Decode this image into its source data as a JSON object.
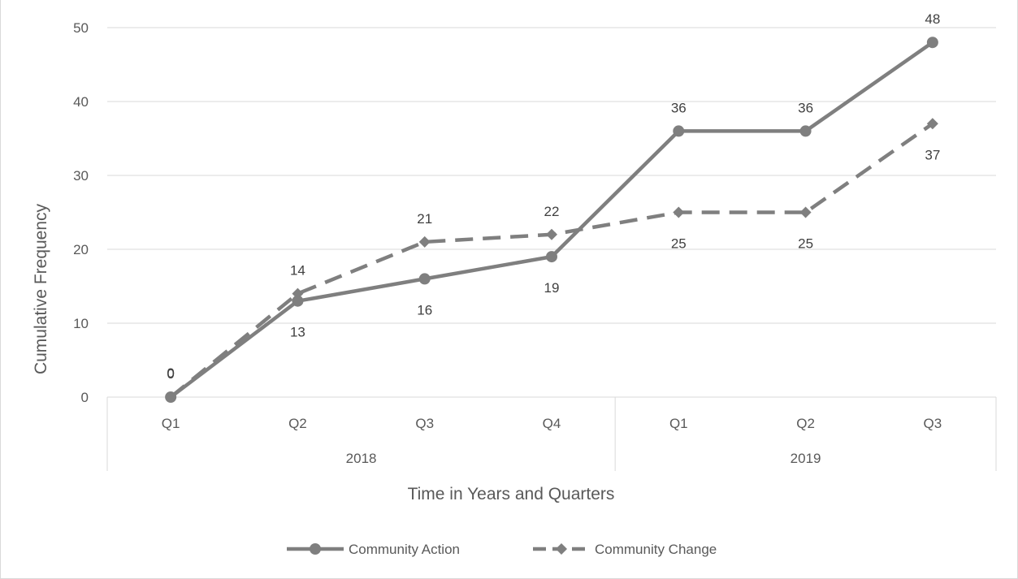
{
  "chart_data": {
    "type": "line",
    "categories": [
      "Q1",
      "Q2",
      "Q3",
      "Q4",
      "Q1",
      "Q2",
      "Q3"
    ],
    "category_groups": [
      {
        "label": "2018",
        "span": 4
      },
      {
        "label": "2019",
        "span": 3
      }
    ],
    "series": [
      {
        "name": "Community Action",
        "values": [
          0,
          13,
          16,
          19,
          36,
          36,
          48
        ],
        "color": "#7f7f7f",
        "line": "solid",
        "marker": "circle"
      },
      {
        "name": "Community Change",
        "values": [
          0,
          14,
          21,
          22,
          25,
          25,
          37
        ],
        "color": "#7f7f7f",
        "line": "dashed",
        "marker": "diamond"
      }
    ],
    "xlabel": "Time in Years and Quarters",
    "ylabel": "Cumulative Frequency",
    "ylim": [
      0,
      50
    ],
    "yticks": [
      0,
      10,
      20,
      30,
      40,
      50
    ],
    "grid": true,
    "legend_position": "bottom"
  }
}
